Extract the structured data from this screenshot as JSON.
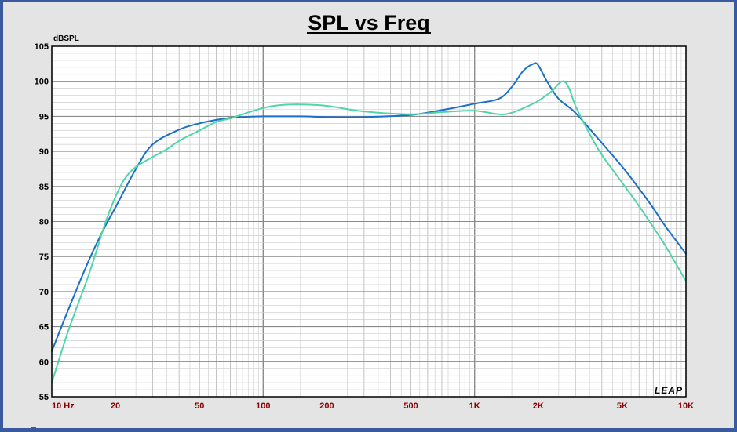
{
  "chart_data": {
    "type": "line",
    "title": "SPL vs Freq",
    "ylabel": "dBSPL",
    "xscale": "log",
    "xlim": [
      10,
      10000
    ],
    "ylim": [
      55,
      105
    ],
    "grid": true,
    "yticks": [
      {
        "value": 105,
        "label": "105"
      },
      {
        "value": 100,
        "label": "100"
      },
      {
        "value": 95,
        "label": "95"
      },
      {
        "value": 90,
        "label": "90"
      },
      {
        "value": 85,
        "label": "85"
      },
      {
        "value": 80,
        "label": "80"
      },
      {
        "value": 75,
        "label": "75"
      },
      {
        "value": 70,
        "label": "70"
      },
      {
        "value": 65,
        "label": "65"
      },
      {
        "value": 60,
        "label": "60"
      },
      {
        "value": 55,
        "label": "55"
      }
    ],
    "xticks": [
      {
        "value": 10,
        "label": "10  Hz"
      },
      {
        "value": 20,
        "label": "20"
      },
      {
        "value": 50,
        "label": "50"
      },
      {
        "value": 100,
        "label": "100"
      },
      {
        "value": 200,
        "label": "200"
      },
      {
        "value": 500,
        "label": "500"
      },
      {
        "value": 1000,
        "label": "1K"
      },
      {
        "value": 2000,
        "label": "2K"
      },
      {
        "value": 5000,
        "label": "5K"
      },
      {
        "value": 10000,
        "label": "10K"
      }
    ],
    "series": [
      {
        "color": "#1a6fc9",
        "x": [
          10,
          12,
          15,
          18,
          20,
          25,
          30,
          40,
          50,
          60,
          70,
          80,
          100,
          150,
          200,
          300,
          500,
          700,
          1000,
          1300,
          1500,
          1700,
          1900,
          2000,
          2200,
          2500,
          3000,
          4000,
          5000,
          6000,
          7000,
          8000,
          10000
        ],
        "y": [
          61.5,
          67.5,
          74.5,
          79.5,
          82,
          87.5,
          91,
          93.1,
          94,
          94.5,
          94.8,
          94.9,
          95,
          95,
          94.9,
          94.9,
          95.2,
          95.9,
          96.8,
          97.5,
          99.2,
          101.5,
          102.5,
          102.3,
          100,
          97.5,
          95.5,
          91.2,
          87.8,
          84.7,
          81.9,
          79.3,
          75.4
        ]
      },
      {
        "color": "#4fd6a8",
        "x": [
          10,
          12,
          15,
          18,
          20,
          22,
          25,
          30,
          35,
          40,
          50,
          60,
          70,
          80,
          100,
          120,
          150,
          200,
          300,
          500,
          700,
          1000,
          1300,
          1500,
          1800,
          2000,
          2300,
          2600,
          2800,
          3000,
          3500,
          4000,
          5000,
          6000,
          7000,
          8000,
          10000
        ],
        "y": [
          57,
          64.5,
          72.5,
          80,
          83.5,
          86,
          87.8,
          89.2,
          90.3,
          91.5,
          93,
          94.2,
          94.7,
          95.3,
          96.2,
          96.6,
          96.7,
          96.5,
          95.7,
          95.3,
          95.6,
          95.8,
          95.3,
          95.5,
          96.5,
          97.2,
          98.5,
          100,
          99,
          96.5,
          92.5,
          89.5,
          85.5,
          82.2,
          79.2,
          76.5,
          71.5
        ]
      }
    ]
  },
  "watermark": "LEAP"
}
